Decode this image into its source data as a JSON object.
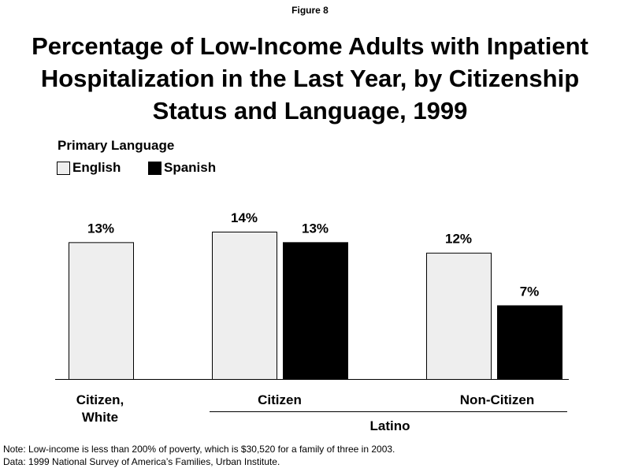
{
  "figure_label": "Figure 8",
  "title_lines": [
    "Percentage of Low-Income Adults with Inpatient",
    "Hospitalization in the Last Year, by Citizenship",
    "Status and Language, 1999"
  ],
  "colors": {
    "english": "#eeeeee",
    "spanish": "#000000"
  },
  "chart_data": {
    "type": "bar",
    "title": "Percentage of Low-Income Adults with Inpatient Hospitalization in the Last Year, by Citizenship Status and Language, 1999",
    "legend_title": "Primary Language",
    "legend_position": "top-left",
    "series": [
      {
        "name": "English",
        "color": "#eeeeee"
      },
      {
        "name": "Spanish",
        "color": "#000000"
      }
    ],
    "bars": [
      {
        "group": "Citizen, White",
        "series": "English",
        "value": 13,
        "label": "13%"
      },
      {
        "group": "Citizen",
        "series": "English",
        "value": 14,
        "label": "14%"
      },
      {
        "group": "Citizen",
        "series": "Spanish",
        "value": 13,
        "label": "13%"
      },
      {
        "group": "Non-Citizen",
        "series": "English",
        "value": 12,
        "label": "12%"
      },
      {
        "group": "Non-Citizen",
        "series": "Spanish",
        "value": 7,
        "label": "7%"
      }
    ],
    "categories": [
      "Citizen, White",
      "Citizen",
      "Non-Citizen"
    ],
    "category_lines": [
      [
        "Citizen,",
        "White"
      ],
      [
        "Citizen"
      ],
      [
        "Non-Citizen"
      ]
    ],
    "supergroup_label": "Latino",
    "ylim": [
      0,
      14
    ],
    "grid": false
  },
  "note": "Note: Low-income is less than 200% of poverty, which is $30,520 for a family of three in 2003.",
  "source": "Data: 1999 National Survey of America’s Families, Urban Institute."
}
